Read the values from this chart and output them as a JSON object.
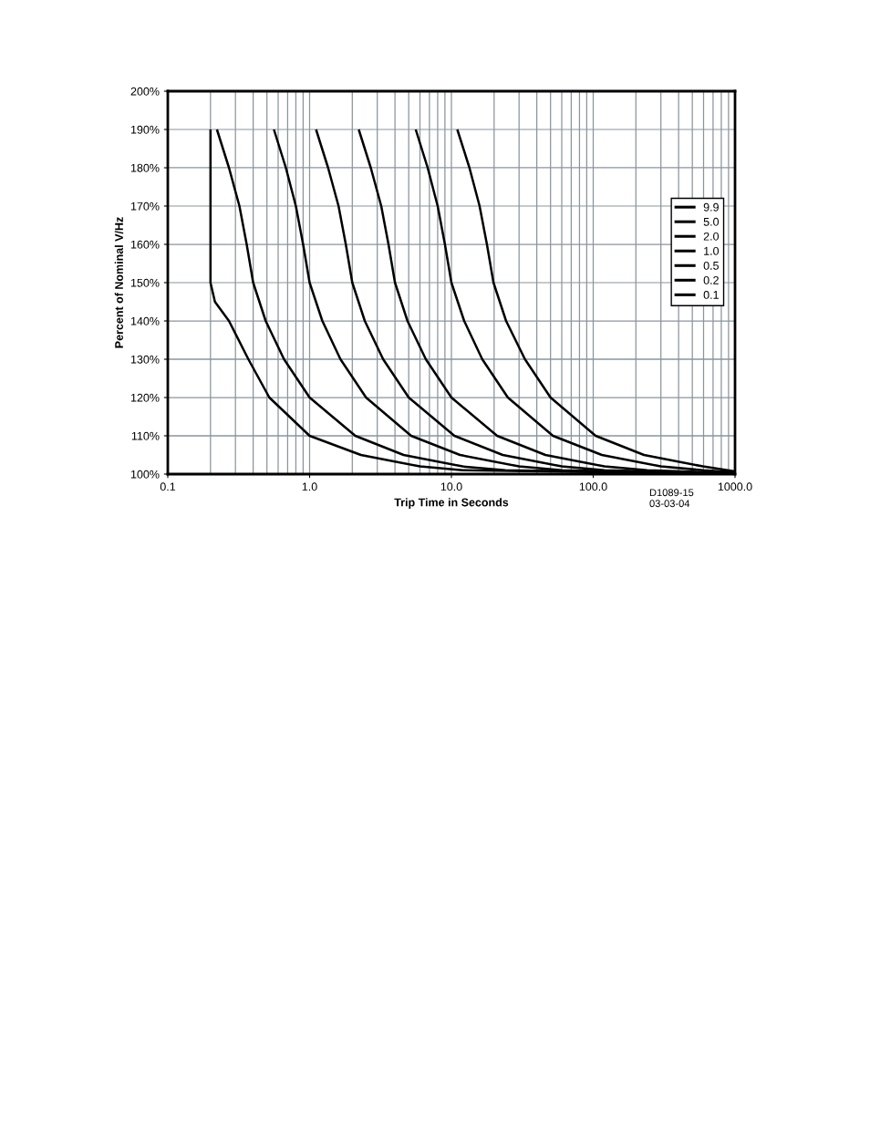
{
  "chart_data": {
    "type": "line",
    "xlabel": "Trip Time in Seconds",
    "ylabel": "Percent of Nominal V/Hz",
    "log": "x",
    "grid": true,
    "legend": "right",
    "marker": "none",
    "line_style": "solid",
    "xlim": [
      0.1,
      1000
    ],
    "xticks": [
      {
        "value": 0.1,
        "label": "0.1"
      },
      {
        "value": 1,
        "label": "1.0"
      },
      {
        "value": 10,
        "label": "10.0"
      },
      {
        "value": 100,
        "label": "100.0"
      },
      {
        "value": 1000,
        "label": "1000.0"
      }
    ],
    "ylim": [
      100,
      200
    ],
    "yticks": [
      {
        "value": 100,
        "label": "100%"
      },
      {
        "value": 110,
        "label": "110%"
      },
      {
        "value": 120,
        "label": "120%"
      },
      {
        "value": 130,
        "label": "130%"
      },
      {
        "value": 140,
        "label": "140%"
      },
      {
        "value": 150,
        "label": "150%"
      },
      {
        "value": 160,
        "label": "160%"
      },
      {
        "value": 170,
        "label": "170%"
      },
      {
        "value": 180,
        "label": "180%"
      },
      {
        "value": 190,
        "label": "190%"
      },
      {
        "value": 200,
        "label": "200%"
      }
    ],
    "annotations": [
      "D1089-15\n03-03-04"
    ],
    "series": [
      {
        "name": "9.9",
        "color": "#000000",
        "x": [
          11,
          13.4,
          15.8,
          17.8,
          19.8,
          24.3,
          33,
          50,
          104,
          228,
          594,
          1000
        ],
        "values": [
          190,
          180,
          170,
          160,
          150,
          140,
          130,
          120,
          110,
          105,
          102,
          100.7
        ]
      },
      {
        "name": "5.0",
        "color": "#000000",
        "x": [
          5.6,
          6.8,
          8,
          9,
          10,
          12.3,
          16.5,
          25,
          52,
          115,
          300,
          600,
          1000
        ],
        "values": [
          190,
          180,
          170,
          160,
          150,
          140,
          130,
          120,
          110,
          105,
          102,
          101,
          100.5
        ]
      },
      {
        "name": "2.0",
        "color": "#000000",
        "x": [
          2.22,
          2.7,
          3.2,
          3.6,
          4,
          4.9,
          6.6,
          10,
          21,
          46,
          120,
          240,
          1000
        ],
        "values": [
          190,
          180,
          170,
          160,
          150,
          140,
          130,
          120,
          110,
          105,
          102,
          101,
          100.3
        ]
      },
      {
        "name": "1.0",
        "color": "#000000",
        "x": [
          1.11,
          1.35,
          1.6,
          1.8,
          2.0,
          2.45,
          3.3,
          5.0,
          10.5,
          23,
          60,
          120,
          1000
        ],
        "values": [
          190,
          180,
          170,
          160,
          150,
          140,
          130,
          120,
          110,
          105,
          102,
          101,
          100.2
        ]
      },
      {
        "name": "0.5",
        "color": "#000000",
        "x": [
          0.56,
          0.68,
          0.8,
          0.9,
          1.0,
          1.23,
          1.65,
          2.5,
          5.2,
          11.5,
          30,
          60,
          1000
        ],
        "values": [
          190,
          180,
          170,
          160,
          150,
          140,
          130,
          120,
          110,
          105,
          102,
          101,
          100.1
        ]
      },
      {
        "name": "0.2",
        "color": "#000000",
        "x": [
          0.222,
          0.27,
          0.32,
          0.36,
          0.4,
          0.49,
          0.66,
          1.0,
          2.1,
          4.6,
          12,
          24,
          1000
        ],
        "values": [
          190,
          180,
          170,
          160,
          150,
          140,
          130,
          120,
          110,
          105,
          102,
          101,
          100.1
        ]
      },
      {
        "name": "0.1",
        "color": "#000000",
        "x": [
          0.2,
          0.2,
          0.2,
          0.2,
          0.2,
          0.215,
          0.27,
          0.37,
          0.52,
          1.0,
          2.3,
          6,
          12,
          1000
        ],
        "values": [
          190,
          180,
          170,
          160,
          150,
          145,
          140,
          130,
          120,
          110,
          105,
          102,
          101,
          100
        ]
      }
    ]
  }
}
